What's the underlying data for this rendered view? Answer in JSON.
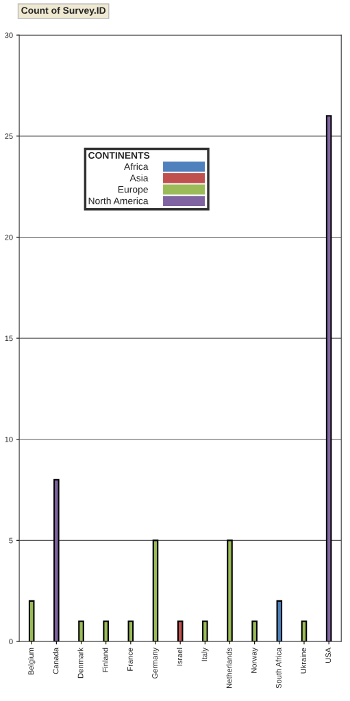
{
  "chart_data": {
    "type": "bar",
    "title": "Count of Survey.ID",
    "legend_title": "CONTINENTS",
    "categories": [
      "Belgium",
      "Canada",
      "Denmark",
      "Finland",
      "France",
      "Germany",
      "Israel",
      "Italy",
      "Netherlands",
      "Norway",
      "South Africa",
      "Ukraine",
      "USA"
    ],
    "series": [
      {
        "name": "Africa",
        "color": "#4f81bd",
        "values": [
          null,
          null,
          null,
          null,
          null,
          null,
          null,
          null,
          null,
          null,
          2,
          null,
          null
        ]
      },
      {
        "name": "Asia",
        "color": "#c0504d",
        "values": [
          null,
          null,
          null,
          null,
          null,
          null,
          1,
          null,
          null,
          null,
          null,
          null,
          null
        ]
      },
      {
        "name": "Europe",
        "color": "#9bbb59",
        "values": [
          2,
          null,
          1,
          1,
          1,
          5,
          null,
          1,
          5,
          1,
          null,
          1,
          null
        ]
      },
      {
        "name": "North America",
        "color": "#8064a2",
        "values": [
          null,
          8,
          null,
          null,
          null,
          null,
          null,
          null,
          null,
          null,
          null,
          null,
          26
        ]
      }
    ],
    "ylim": [
      0,
      30
    ],
    "yticks": [
      0,
      5,
      10,
      15,
      20,
      25,
      30
    ],
    "grid": "y",
    "legend": "top left"
  }
}
